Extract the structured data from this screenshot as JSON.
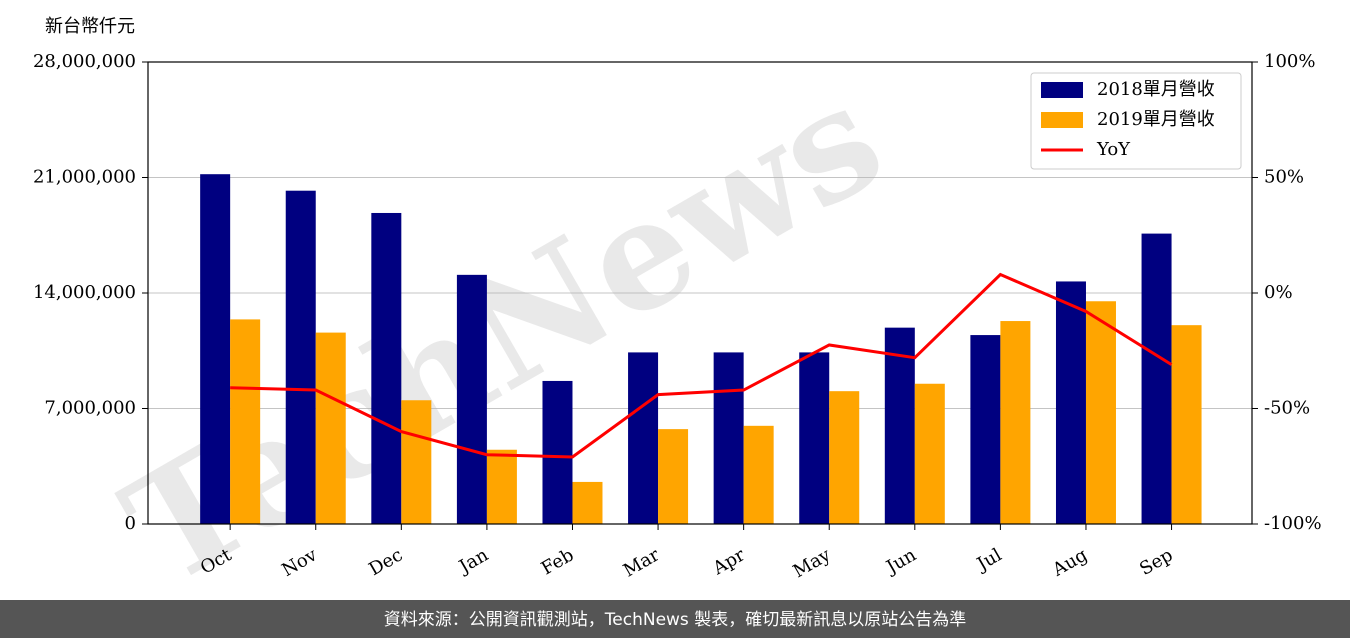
{
  "chart_data": {
    "type": "bar_line",
    "unit_label": "新台幣仟元",
    "watermark": "TechNews",
    "footer": "資料來源：公開資訊觀測站，TechNews 製表，確切最新訊息以原站公告為準",
    "categories": [
      "Oct",
      "Nov",
      "Dec",
      "Jan",
      "Feb",
      "Mar",
      "Apr",
      "May",
      "Jun",
      "Jul",
      "Aug",
      "Sep"
    ],
    "series": [
      {
        "name": "2018單月營收",
        "color": "#000080",
        "type": "bar",
        "values": [
          21200000,
          20200000,
          18850000,
          15100000,
          8670000,
          10400000,
          10400000,
          10400000,
          11900000,
          11450000,
          14700000,
          17600000
        ]
      },
      {
        "name": "2019單月營收",
        "color": "#ffa500",
        "type": "bar",
        "values": [
          12400000,
          11600000,
          7500000,
          4500000,
          2550000,
          5750000,
          5950000,
          8050000,
          8500000,
          12300000,
          13500000,
          12050000
        ]
      },
      {
        "name": "YoY",
        "color": "#ff0000",
        "type": "line",
        "axis": "y2",
        "values": [
          -41,
          -42,
          -60,
          -70,
          -71,
          -44,
          -42,
          -22.5,
          -28,
          8,
          -8,
          -31
        ]
      }
    ],
    "ylim": [
      0,
      28000000
    ],
    "yticks": [
      0,
      {
        "value": 7000000,
        "label": "7,000,000"
      },
      {
        "value": 14000000,
        "label": "14,000,000"
      },
      {
        "value": 21000000,
        "label": "21,000,000"
      },
      {
        "value": 28000000,
        "label": "28,000,000"
      }
    ],
    "y2lim": [
      -100,
      100
    ],
    "y2ticks": [
      {
        "value": -100,
        "label": "-100%"
      },
      {
        "value": -50,
        "label": "-50%"
      },
      {
        "value": 0,
        "label": "0%"
      },
      {
        "value": 50,
        "label": "50%"
      },
      {
        "value": 100,
        "label": "100%"
      }
    ],
    "grid": true,
    "legend": "upper right"
  }
}
